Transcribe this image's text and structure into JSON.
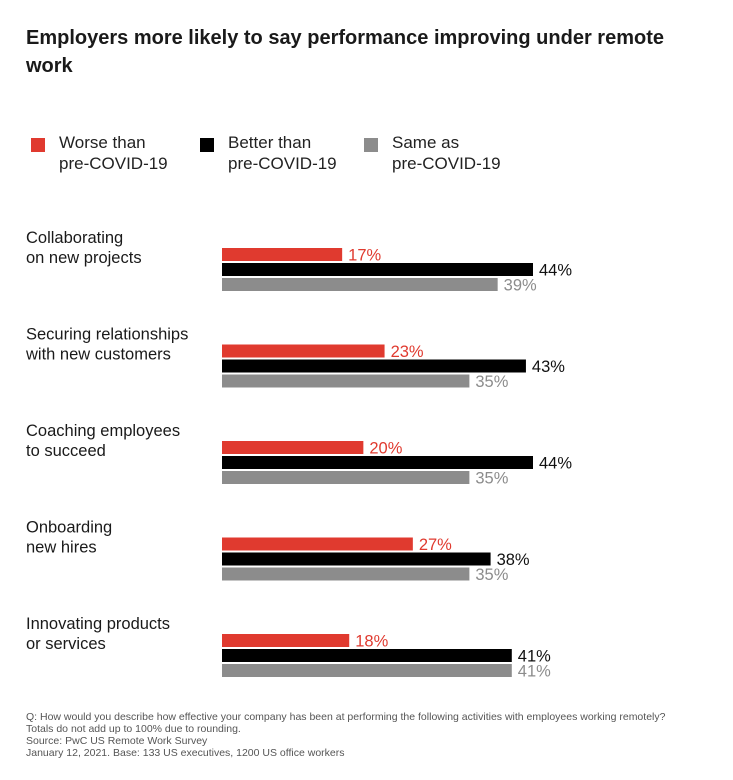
{
  "title": "Employers more likely to say performance improving under remote work",
  "colors": {
    "worse": "#e03a2f",
    "better": "#000000",
    "same": "#8c8c8c",
    "worse_text": "#e03a2f",
    "better_text": "#111111",
    "same_text": "#8c8c8c"
  },
  "legend": [
    {
      "label": "Worse than\npre-COVID-19",
      "color": "#e03a2f",
      "icon": "square-swatch"
    },
    {
      "label": "Better than\npre-COVID-19",
      "color": "#000000",
      "icon": "square-swatch"
    },
    {
      "label": "Same as\npre-COVID-19",
      "color": "#8c8c8c",
      "icon": "square-swatch"
    }
  ],
  "chart_data": {
    "type": "bar",
    "orientation": "horizontal",
    "categories": [
      [
        "Collaborating",
        "on new projects"
      ],
      [
        "Securing relationships",
        "with new customers"
      ],
      [
        "Coaching employees",
        "to succeed"
      ],
      [
        "Onboarding",
        "new hires"
      ],
      [
        "Innovating products",
        "or services"
      ]
    ],
    "series": [
      {
        "name": "Worse than pre-COVID-19",
        "key": "worse",
        "values": [
          17,
          23,
          20,
          27,
          18
        ]
      },
      {
        "name": "Better than pre-COVID-19",
        "key": "better",
        "values": [
          44,
          43,
          44,
          38,
          41
        ]
      },
      {
        "name": "Same as pre-COVID-19",
        "key": "same",
        "values": [
          39,
          35,
          35,
          35,
          41
        ]
      }
    ],
    "value_suffix": "%",
    "xlim": [
      0,
      44
    ],
    "grid": false,
    "legend_position": "top"
  },
  "footnotes": [
    "Q: How would you describe how effective your company has been at performing the following activities with employees working remotely?",
    "Totals do not add up to 100% due to rounding.",
    "Source: PwC US Remote Work Survey",
    "January 12, 2021. Base: 133 US executives, 1200 US office workers"
  ]
}
